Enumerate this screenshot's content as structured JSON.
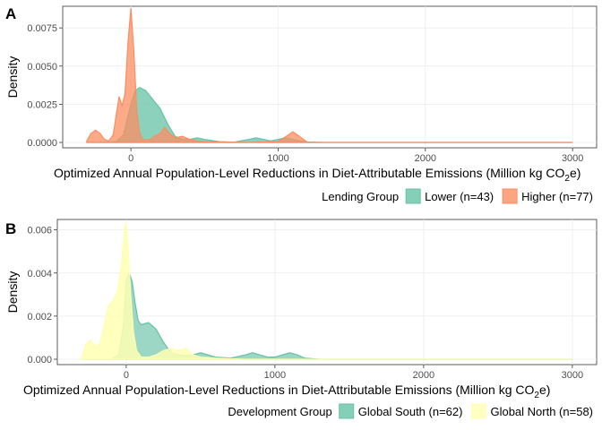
{
  "chart_data": [
    {
      "panel_label": "A",
      "type": "area",
      "subtype": "density",
      "xlabel": "Optimized Annual Population-Level Reductions in Diet-Attributable Emissions (Million kg CO",
      "xlabel_sub": "2",
      "xlabel_end": "e)",
      "ylabel": "Density",
      "xlim": [
        -300,
        3000
      ],
      "ylim": [
        0,
        0.0088
      ],
      "x_ticks": [
        "0",
        "1000",
        "2000",
        "3000"
      ],
      "y_ticks": [
        "0.0000",
        "0.0025",
        "0.0050",
        "0.0075"
      ],
      "legend_title": "Lending Group",
      "legend_position": "bottom-right",
      "series": [
        {
          "name": "Lower (n=43)",
          "color": "#66c2a5",
          "x": [
            -300,
            -200,
            -100,
            -50,
            0,
            30,
            60,
            100,
            150,
            200,
            250,
            300,
            350,
            400,
            450,
            500,
            600,
            700,
            800,
            850,
            900,
            950,
            1000,
            1050,
            1100,
            1150,
            1200,
            1300,
            1500,
            2000,
            3000
          ],
          "y": [
            0.0,
            0.0,
            5e-05,
            0.0005,
            0.0025,
            0.0034,
            0.0036,
            0.0034,
            0.0028,
            0.0022,
            0.0012,
            0.0004,
            0.0002,
            0.0002,
            0.0003,
            0.0002,
            5e-05,
            2e-05,
            0.0002,
            0.0003,
            0.0002,
            0.0001,
            0.0002,
            0.0003,
            0.0002,
            0.0001,
            3e-05,
            0.0,
            0.0,
            0.0,
            0.0
          ]
        },
        {
          "name": "Higher (n=77)",
          "color": "#fc8d62",
          "x": [
            -300,
            -270,
            -240,
            -210,
            -180,
            -150,
            -120,
            -100,
            -80,
            -60,
            -40,
            -20,
            0,
            20,
            40,
            60,
            80,
            100,
            130,
            160,
            200,
            230,
            260,
            300,
            350,
            400,
            450,
            500,
            600,
            800,
            1000,
            1070,
            1100,
            1130,
            1200,
            1500,
            2000,
            3000
          ],
          "y": [
            0.0001,
            0.0006,
            0.0008,
            0.0006,
            0.0002,
            0.0001,
            0.0005,
            0.0018,
            0.003,
            0.0024,
            0.0032,
            0.0065,
            0.0088,
            0.006,
            0.002,
            0.0006,
            0.0002,
            0.00015,
            0.0002,
            0.0004,
            0.0006,
            0.001,
            0.0006,
            0.0003,
            0.0004,
            0.0002,
            0.0001,
            5e-05,
            2e-05,
            0.0,
            5e-05,
            0.0005,
            0.0007,
            0.0005,
            0.0,
            0.0,
            0.0,
            0.0
          ]
        }
      ]
    },
    {
      "panel_label": "B",
      "type": "area",
      "subtype": "density",
      "xlabel": "Optimized Annual Population-Level Reductions in Diet-Attributable Emissions (Million kg CO",
      "xlabel_sub": "2",
      "xlabel_end": "e)",
      "ylabel": "Density",
      "xlim": [
        -300,
        3000
      ],
      "ylim": [
        0,
        0.0064
      ],
      "x_ticks": [
        "0",
        "1000",
        "2000",
        "3000"
      ],
      "y_ticks": [
        "0.000",
        "0.002",
        "0.004",
        "0.006"
      ],
      "legend_title": "Development Group",
      "legend_position": "bottom-right",
      "series": [
        {
          "name": "Global South (n=62)",
          "color": "#66c2a5",
          "x": [
            -300,
            -200,
            -100,
            -50,
            -20,
            0,
            20,
            40,
            60,
            80,
            100,
            150,
            200,
            250,
            300,
            350,
            400,
            450,
            500,
            600,
            700,
            800,
            850,
            900,
            950,
            1000,
            1050,
            1100,
            1150,
            1200,
            1300,
            1500,
            2000,
            3000
          ],
          "y": [
            0.0,
            0.0,
            0.0,
            0.0002,
            0.0015,
            0.0036,
            0.004,
            0.0036,
            0.0026,
            0.0018,
            0.0016,
            0.0017,
            0.0014,
            0.0008,
            0.0003,
            0.0002,
            0.00015,
            0.0002,
            0.0003,
            0.0001,
            5e-05,
            0.0002,
            0.0003,
            0.0002,
            0.0001,
            0.0001,
            0.0002,
            0.0003,
            0.0002,
            5e-05,
            0.0,
            0.0,
            0.0,
            0.0
          ]
        },
        {
          "name": "Global North (n=58)",
          "color": "#ffffb3",
          "x": [
            -300,
            -270,
            -240,
            -210,
            -180,
            -150,
            -120,
            -90,
            -60,
            -30,
            -10,
            0,
            10,
            30,
            50,
            70,
            100,
            150,
            200,
            250,
            300,
            350,
            400,
            450,
            500,
            600,
            800,
            1000,
            1500,
            2000,
            3000
          ],
          "y": [
            0.0001,
            0.0007,
            0.0009,
            0.0006,
            0.0007,
            0.0015,
            0.0025,
            0.0027,
            0.0031,
            0.0045,
            0.0062,
            0.0063,
            0.0055,
            0.003,
            0.0012,
            0.0004,
            0.0001,
            0.0001,
            0.0002,
            0.0004,
            0.0005,
            0.0004,
            0.0005,
            0.0002,
            0.0001,
            5e-05,
            0.0,
            0.0,
            0.0,
            0.0,
            0.0
          ]
        }
      ]
    }
  ]
}
